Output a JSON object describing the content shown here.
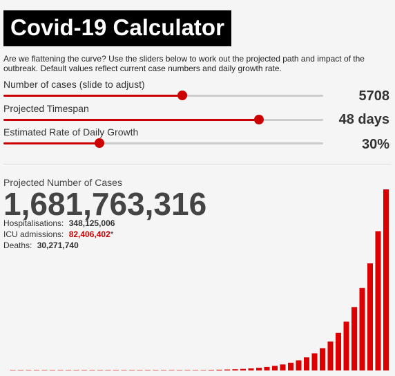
{
  "header": {
    "title": "Covid-19 Calculator"
  },
  "description": "Are we flattening the curve? Use the sliders below to work out the projected path and impact of the outbreak. Default values reflect current case numbers and daily growth rate.",
  "sliders": [
    {
      "label": "Number of cases (slide to adjust)",
      "value": "5708",
      "fraction": 0.56
    },
    {
      "label": "Projected Timespan",
      "value": "48 days",
      "fraction": 0.8
    },
    {
      "label": "Estimated Rate of Daily Growth",
      "value": "30%",
      "fraction": 0.3
    }
  ],
  "projection": {
    "label": "Projected Number of Cases",
    "value": "1,681,763,316",
    "hospitalisations_label": "Hospitalisations:",
    "hospitalisations": "348,125,006",
    "icu_label": "ICU admissions:",
    "icu": "82,406,402",
    "icu_mark": "*",
    "deaths_label": "Deaths:",
    "deaths": "30,271,740"
  },
  "colors": {
    "accent": "#cc0000",
    "track": "#cccccc",
    "title_bg": "#000000"
  },
  "chart_data": {
    "type": "bar",
    "days": 48,
    "growth_rate": 0.3,
    "start_cases": 5708,
    "bar_color": "#dd0000"
  }
}
